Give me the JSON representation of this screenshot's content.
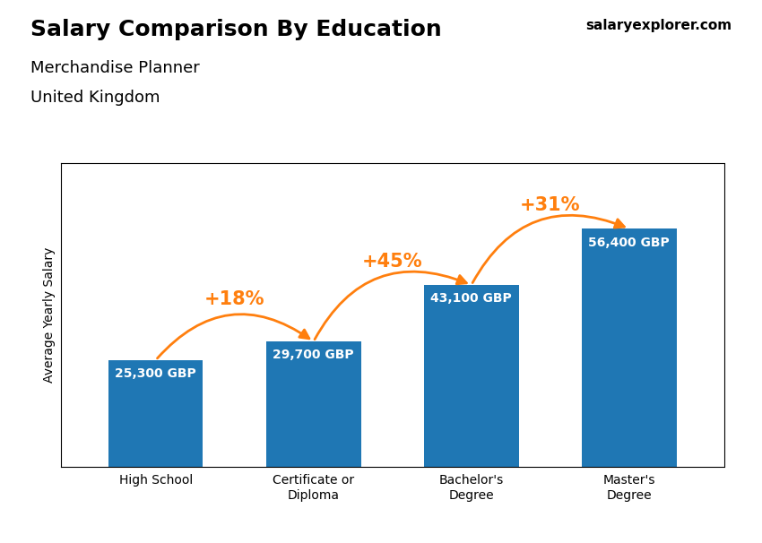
{
  "chart_data": {
    "type": "bar",
    "title": "Salary Comparison By Education",
    "subtitle": [
      "Merchandise Planner",
      "United Kingdom"
    ],
    "source": "salaryexplorer.com",
    "ylabel": "Average Yearly Salary",
    "categories": [
      "High School",
      "Certificate or\nDiploma",
      "Bachelor's\nDegree",
      "Master's\nDegree"
    ],
    "values": [
      25300,
      29700,
      43100,
      56400
    ],
    "value_labels": [
      "25,300 GBP",
      "29,700 GBP",
      "43,100 GBP",
      "56,400 GBP"
    ],
    "data_labels": true,
    "annotations": [
      "+18%",
      "+45%",
      "+31%"
    ],
    "ylim": [
      0,
      72000
    ],
    "tick_labels": "x",
    "grid": false
  }
}
